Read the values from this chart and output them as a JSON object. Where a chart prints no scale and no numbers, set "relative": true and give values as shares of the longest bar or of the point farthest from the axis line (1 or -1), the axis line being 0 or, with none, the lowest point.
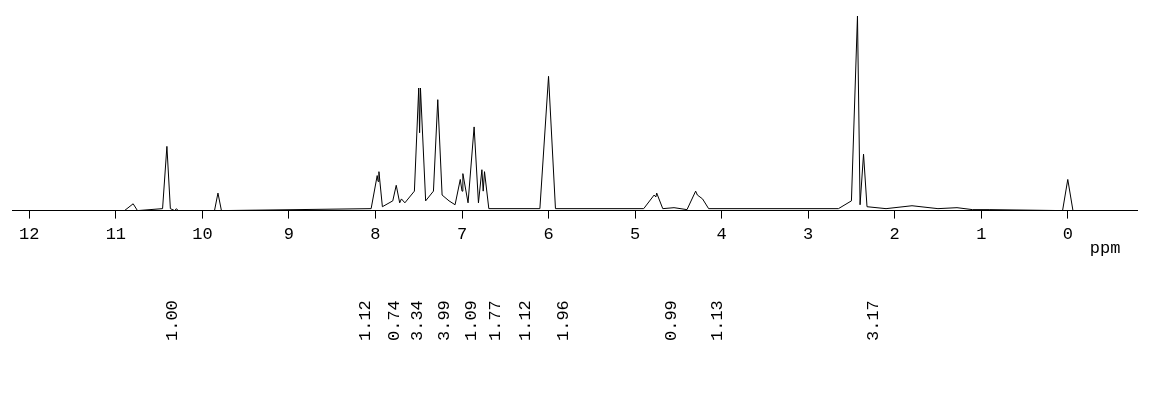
{
  "chart_data": {
    "type": "line",
    "relative": true,
    "xlabel": "ppm",
    "color": "#000000",
    "xlim": [
      12.2,
      -0.8
    ],
    "xticks": [
      12,
      11,
      10,
      9,
      8,
      7,
      6,
      5,
      4,
      3,
      2,
      1,
      0
    ],
    "grid": false,
    "legend": false,
    "marker": "none",
    "line_style": "solid",
    "x": [
      12.2,
      10.9,
      10.8,
      10.75,
      10.46,
      10.41,
      10.37,
      10.32,
      10.3,
      10.28,
      9.86,
      9.82,
      9.78,
      8.05,
      7.98,
      7.97,
      7.96,
      7.92,
      7.8,
      7.76,
      7.72,
      7.7,
      7.66,
      7.55,
      7.5,
      7.49,
      7.48,
      7.42,
      7.33,
      7.28,
      7.23,
      7.15,
      7.08,
      7.02,
      7.0,
      6.99,
      6.93,
      6.86,
      6.81,
      6.77,
      6.755,
      6.74,
      6.69,
      6.1,
      6.0,
      5.92,
      4.9,
      4.78,
      4.76,
      4.75,
      4.68,
      4.55,
      4.4,
      4.3,
      4.28,
      4.25,
      4.22,
      4.15,
      2.65,
      2.5,
      2.43,
      2.4,
      2.36,
      2.32,
      2.1,
      1.8,
      1.5,
      1.28,
      1.1,
      0.9,
      0.06,
      0.0,
      -0.06,
      -0.8
    ],
    "values": [
      0,
      0,
      0.035,
      0,
      0.01,
      0.33,
      0.01,
      0,
      0.01,
      0,
      0,
      0.09,
      0,
      0.01,
      0.18,
      0.15,
      0.2,
      0.02,
      0.05,
      0.13,
      0.04,
      0.06,
      0.04,
      0.1,
      0.63,
      0.4,
      0.63,
      0.05,
      0.1,
      0.57,
      0.08,
      0.05,
      0.03,
      0.16,
      0.1,
      0.19,
      0.04,
      0.43,
      0.04,
      0.21,
      0.1,
      0.2,
      0.01,
      0.01,
      0.69,
      0.01,
      0.01,
      0.08,
      0.07,
      0.09,
      0.01,
      0.015,
      0.005,
      0.1,
      0.08,
      0.07,
      0.06,
      0.01,
      0.01,
      0.05,
      1.0,
      0.03,
      0.29,
      0.02,
      0.01,
      0.025,
      0.01,
      0.015,
      0.005,
      0.005,
      0,
      0.16,
      0,
      0
    ],
    "annotations": [
      "1.00",
      "1.12",
      "0.74",
      "3.34",
      "3.99",
      "1.09",
      "1.77",
      "1.12",
      "1.96",
      "0.99",
      "1.13",
      "3.17"
    ]
  }
}
